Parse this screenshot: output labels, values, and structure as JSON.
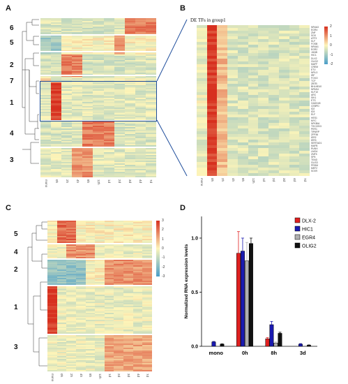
{
  "panels": {
    "a": {
      "label": "A",
      "clusters": [
        "6",
        "5",
        "2",
        "7",
        "1",
        "4",
        "3"
      ],
      "ticks": [
        "mono",
        "0h",
        "2h",
        "4h",
        "8h",
        "12h",
        "1d",
        "2d",
        "3d",
        "4d",
        "7d"
      ]
    },
    "b": {
      "label": "B",
      "title": "DE TFs in group1",
      "ticks": [
        "mono",
        "0h",
        "2h",
        "4h",
        "8h",
        "12h",
        "1d",
        "2d",
        "3d",
        "4d",
        "7d"
      ],
      "colorbar_ticks": [
        "2",
        "1",
        "0",
        "-1",
        "-2"
      ]
    },
    "c": {
      "label": "C",
      "clusters": [
        "5",
        "4",
        "2",
        "1",
        "3"
      ],
      "ticks": [
        "mono",
        "0h",
        "2h",
        "4h",
        "8h",
        "12h",
        "1d",
        "2d",
        "3d",
        "4d",
        "7d"
      ],
      "colorbar_ticks": [
        "3",
        "2",
        "1",
        "0",
        "-1",
        "-2",
        "-3"
      ]
    },
    "d": {
      "label": "D"
    }
  },
  "colors": {
    "high": "#d7301f",
    "mid": "#fdf5b9",
    "low": "#4a9ec9",
    "box": "#1f4e9c",
    "dlx2": "#e02020",
    "hic1": "#1a1ab0",
    "egr4": "#b0b0b0",
    "olig2": "#111111"
  },
  "gene_list": [
    "NR4A3",
    "EGR4",
    "ZNF",
    "SOX",
    "ATF3",
    "KLF",
    "FOSB",
    "NR4A1",
    "EGR2",
    "JUNB",
    "HIC1",
    "DLX2",
    "OLIG2",
    "MAFF",
    "CREM",
    "ETV",
    "NFIL3",
    "IRF",
    "FOXO",
    "TCF",
    "ZBTB",
    "BHLHE40",
    "NPAS4",
    "KLF10",
    "ARC",
    "SIK1",
    "ETS",
    "GADD45",
    "CEBPD",
    "ID2",
    "ID3",
    "ELF",
    "HES1",
    "MYC",
    "NFKBIA",
    "TSC22D3",
    "PER1",
    "TIPARP",
    "ZFP36",
    "IER2",
    "IER3",
    "SERTAD1",
    "MAFB",
    "RUNX",
    "LMO4",
    "ZNF5",
    "SP5",
    "TEAD",
    "GLIS3",
    "PRDM",
    "MEF2",
    "SOX9"
  ],
  "chart_data": {
    "type": "bar",
    "categories": [
      "mono",
      "0h",
      "8h",
      "3d"
    ],
    "ylabel": "Normalized RNA expression levels",
    "ylim": [
      0,
      1.2
    ],
    "yticks": [
      "0.0",
      "0.5",
      "1.0"
    ],
    "series": [
      {
        "name": "DLX-2",
        "values": [
          0.0,
          0.86,
          0.07,
          0.0
        ],
        "errors": [
          0.0,
          0.2,
          0.01,
          0.0
        ]
      },
      {
        "name": "HIC1",
        "values": [
          0.04,
          0.88,
          0.2,
          0.02
        ],
        "errors": [
          0.005,
          0.12,
          0.03,
          0.005
        ]
      },
      {
        "name": "EGR4",
        "values": [
          0.0,
          0.79,
          0.03,
          0.0
        ],
        "errors": [
          0.0,
          0.17,
          0.01,
          0.0
        ]
      },
      {
        "name": "OLIG2",
        "values": [
          0.02,
          0.95,
          0.12,
          0.01
        ],
        "errors": [
          0.003,
          0.05,
          0.01,
          0.003
        ]
      }
    ]
  }
}
